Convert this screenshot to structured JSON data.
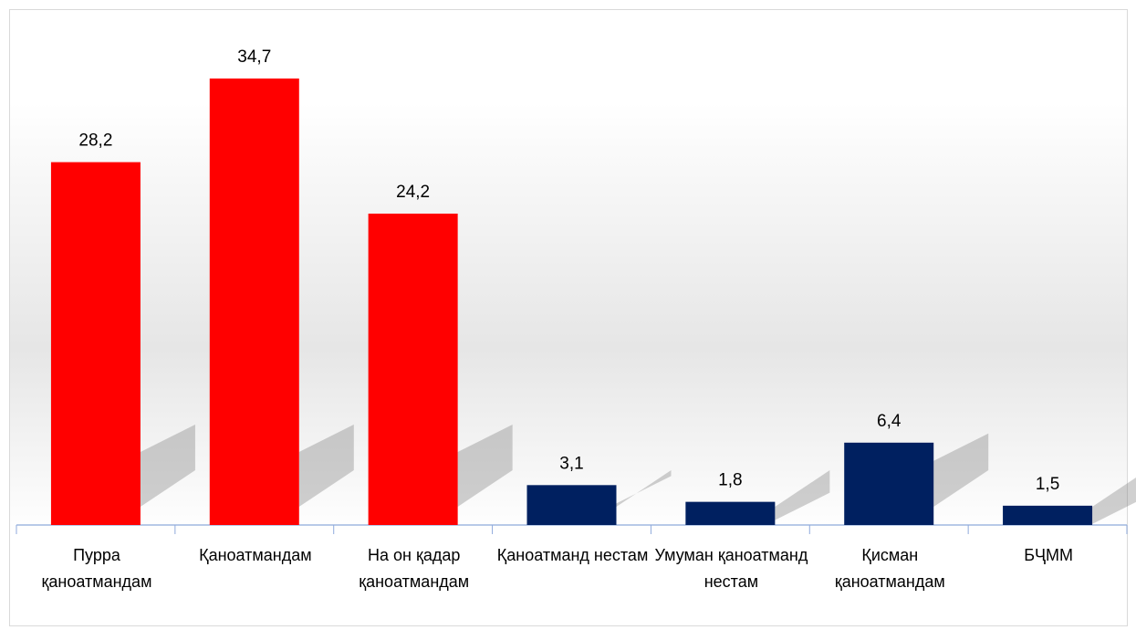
{
  "chart_data": {
    "type": "bar",
    "categories": [
      "Пурра қаноатмандам",
      "Қаноатмандам",
      "На он қадар қаноатмандам",
      "Қаноатманд нестам",
      "Умуман қаноатманд нестам",
      "Қисман қаноатмандам",
      "БҶММ"
    ],
    "values": [
      28.2,
      34.7,
      24.2,
      3.1,
      1.8,
      6.4,
      1.5
    ],
    "value_labels": [
      "28,2",
      "34,7",
      "24,2",
      "3,1",
      "1,8",
      "6,4",
      "1,5"
    ],
    "colors": [
      "#ff0000",
      "#ff0000",
      "#ff0000",
      "#002060",
      "#002060",
      "#002060",
      "#002060"
    ]
  }
}
